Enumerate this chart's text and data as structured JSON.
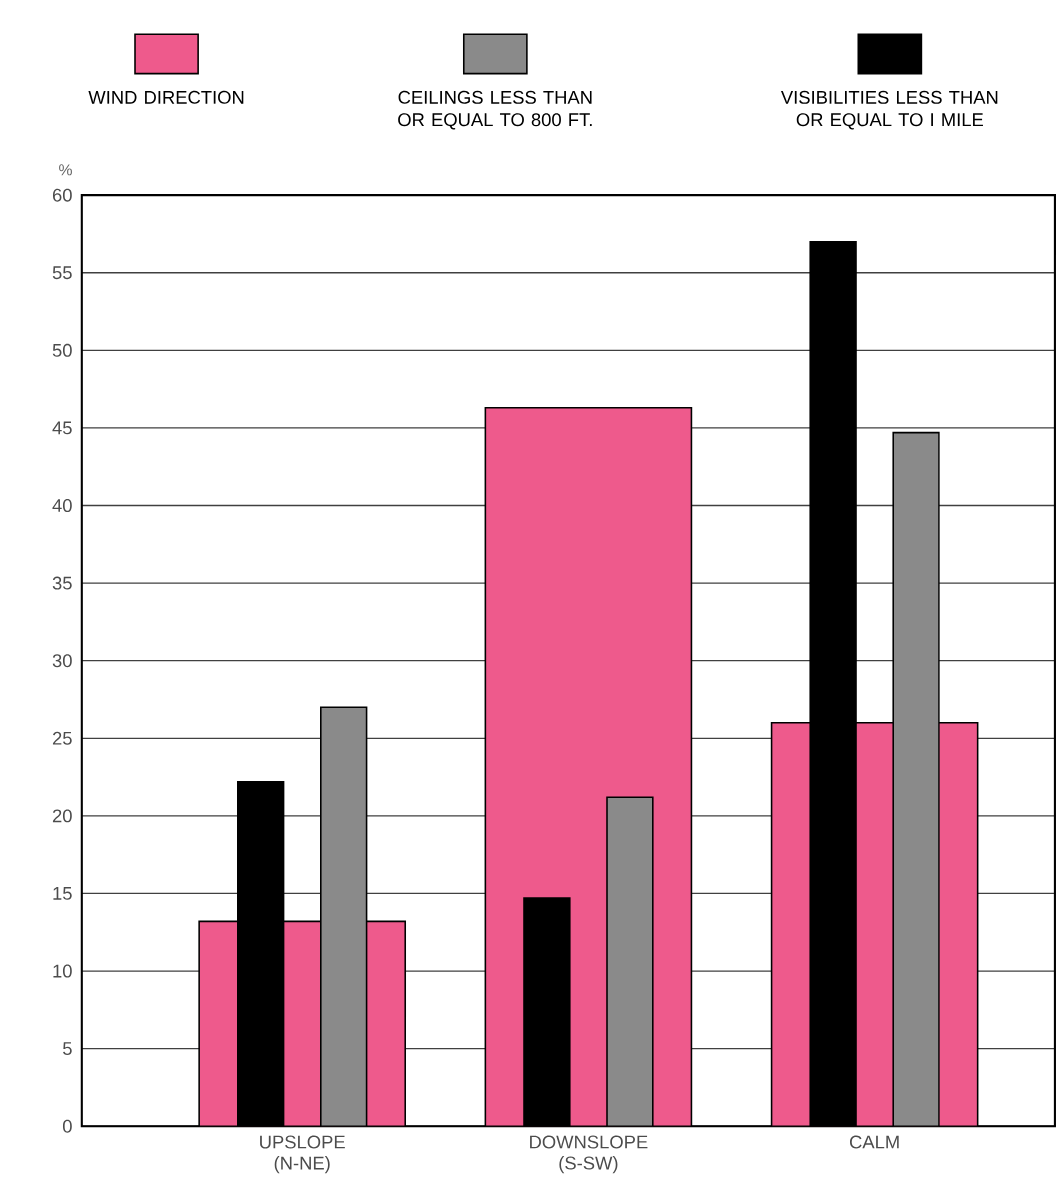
{
  "chart_data": {
    "type": "bar",
    "ylabel": "%",
    "categories": [
      "UPSLOPE (N-NE)",
      "DOWNSLOPE (S-SW)",
      "CALM"
    ],
    "series": [
      {
        "name": "WIND DIRECTION",
        "color": "#ee5a8c",
        "values": [
          13.2,
          46.3,
          26
        ]
      },
      {
        "name": "CEILINGS LESS THAN OR EQUAL TO 800 FT.",
        "color": "#8a8a8a",
        "values": [
          27,
          21.2,
          44.7
        ]
      },
      {
        "name": "VISIBILITIES LESS THAN OR EQUAL TO I MILE",
        "color": "#000000",
        "values": [
          22.2,
          14.7,
          57
        ]
      }
    ],
    "ylim": [
      0,
      60
    ],
    "yticks": [
      0,
      5,
      10,
      15,
      20,
      25,
      30,
      35,
      40,
      45,
      50,
      55,
      60
    ],
    "grid": "y",
    "legend": "top"
  }
}
